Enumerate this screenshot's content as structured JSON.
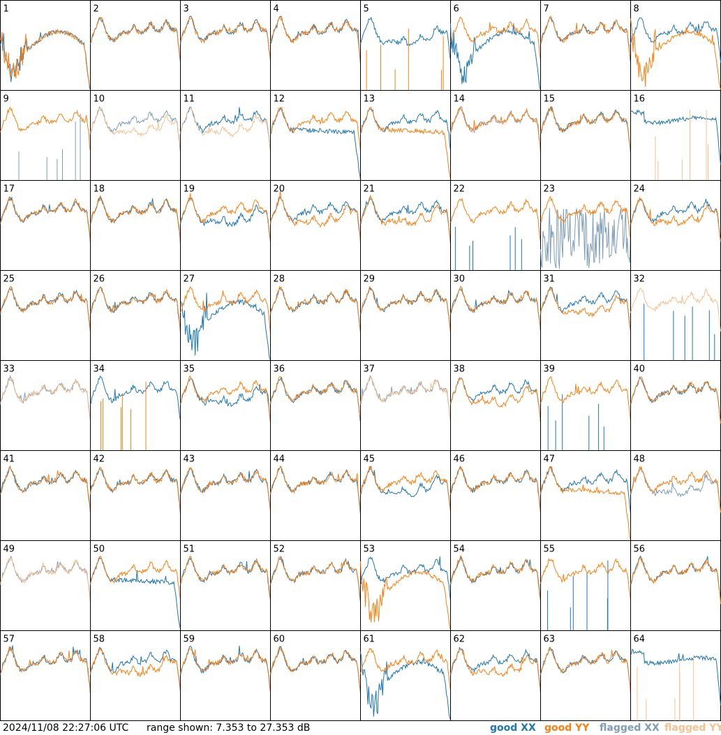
{
  "footer": {
    "timestamp": "2024/11/08 22:27:06 UTC",
    "range": "range shown: 7.353 to 27.353 dB",
    "legend": [
      {
        "label": "good XX",
        "color": "#1f77b4"
      },
      {
        "label": "good YY",
        "color": "#ff7f0e"
      },
      {
        "label": "flagged XX",
        "color": "#7f9db8"
      },
      {
        "label": "flagged YY",
        "color": "#f8c18f"
      }
    ]
  },
  "chart_data": {
    "type": "line",
    "grid": {
      "rows": 8,
      "cols": 8
    },
    "ylim": [
      7.353,
      27.353
    ],
    "yunit": "dB",
    "panels": [
      {
        "id": "1",
        "xx": "bump",
        "yy": "bump",
        "yy_flag": false,
        "xx_flag": false
      },
      {
        "id": "2",
        "xx": "normal",
        "yy": "normal"
      },
      {
        "id": "3",
        "xx": "normal",
        "yy": "normal"
      },
      {
        "id": "4",
        "xx": "normal",
        "yy": "normal"
      },
      {
        "id": "5",
        "xx": "low",
        "yy": "spikes_bottom"
      },
      {
        "id": "6",
        "xx": "bump",
        "yy": "normal"
      },
      {
        "id": "7",
        "xx": "normal",
        "yy": "normal"
      },
      {
        "id": "8",
        "xx": "normal",
        "yy": "bump"
      },
      {
        "id": "9",
        "xx": "spikes_bottom_flag",
        "yy": "normal"
      },
      {
        "id": "10",
        "xx": "normal_flag",
        "yy": "low_flag"
      },
      {
        "id": "11",
        "xx": "normal",
        "yy": "low_flag"
      },
      {
        "id": "12",
        "xx": "decay",
        "yy": "normal"
      },
      {
        "id": "13",
        "xx": "normal",
        "yy": "decay"
      },
      {
        "id": "14",
        "xx": "normal_flag",
        "yy": "normal"
      },
      {
        "id": "15",
        "xx": "normal",
        "yy": "normal"
      },
      {
        "id": "16",
        "xx": "flat",
        "yy": "spikes_bottom_flag"
      },
      {
        "id": "17",
        "xx": "normal",
        "yy": "normal"
      },
      {
        "id": "18",
        "xx": "normal",
        "yy": "normal"
      },
      {
        "id": "19",
        "xx": "low",
        "yy": "normal"
      },
      {
        "id": "20",
        "xx": "normal",
        "yy": "low"
      },
      {
        "id": "21",
        "xx": "normal",
        "yy": "low"
      },
      {
        "id": "22",
        "xx": "spikes_bottom",
        "yy": "normal"
      },
      {
        "id": "23",
        "xx": "noisy_flag",
        "yy": "normal"
      },
      {
        "id": "24",
        "xx": "normal",
        "yy": "low"
      },
      {
        "id": "25",
        "xx": "normal",
        "yy": "normal"
      },
      {
        "id": "26",
        "xx": "normal",
        "yy": "normal"
      },
      {
        "id": "27",
        "xx": "bump",
        "yy": "normal"
      },
      {
        "id": "28",
        "xx": "normal",
        "yy": "normal"
      },
      {
        "id": "29",
        "xx": "normal",
        "yy": "normal"
      },
      {
        "id": "30",
        "xx": "normal",
        "yy": "normal"
      },
      {
        "id": "31",
        "xx": "normal",
        "yy": "low"
      },
      {
        "id": "32",
        "xx": "spikes_bottom",
        "yy": "normal_flag"
      },
      {
        "id": "33",
        "xx": "normal_flag",
        "yy": "normal_flag"
      },
      {
        "id": "34",
        "xx": "normal",
        "yy": "spikes_bottom"
      },
      {
        "id": "35",
        "xx": "low",
        "yy": "normal"
      },
      {
        "id": "36",
        "xx": "normal",
        "yy": "normal"
      },
      {
        "id": "37",
        "xx": "normal_flag",
        "yy": "normal_flag"
      },
      {
        "id": "38",
        "xx": "normal",
        "yy": "low"
      },
      {
        "id": "39",
        "xx": "spikes_bottom",
        "yy": "normal"
      },
      {
        "id": "40",
        "xx": "normal",
        "yy": "normal"
      },
      {
        "id": "41",
        "xx": "normal",
        "yy": "normal"
      },
      {
        "id": "42",
        "xx": "normal",
        "yy": "normal"
      },
      {
        "id": "43",
        "xx": "normal",
        "yy": "normal"
      },
      {
        "id": "44",
        "xx": "normal",
        "yy": "normal"
      },
      {
        "id": "45",
        "xx": "low",
        "yy": "normal"
      },
      {
        "id": "46",
        "xx": "normal",
        "yy": "normal"
      },
      {
        "id": "47",
        "xx": "normal",
        "yy": "decay"
      },
      {
        "id": "48",
        "xx": "low_flag",
        "yy": "normal"
      },
      {
        "id": "49",
        "xx": "normal_flag",
        "yy": "normal_flag"
      },
      {
        "id": "50",
        "xx": "decay",
        "yy": "normal"
      },
      {
        "id": "51",
        "xx": "normal",
        "yy": "normal"
      },
      {
        "id": "52",
        "xx": "normal",
        "yy": "normal"
      },
      {
        "id": "53",
        "xx": "normal",
        "yy": "bump"
      },
      {
        "id": "54",
        "xx": "normal",
        "yy": "normal"
      },
      {
        "id": "55",
        "xx": "spikes_bottom",
        "yy": "normal"
      },
      {
        "id": "56",
        "xx": "normal",
        "yy": "normal"
      },
      {
        "id": "57",
        "xx": "normal",
        "yy": "normal"
      },
      {
        "id": "58",
        "xx": "normal",
        "yy": "low"
      },
      {
        "id": "59",
        "xx": "normal",
        "yy": "normal"
      },
      {
        "id": "60",
        "xx": "normal",
        "yy": "normal"
      },
      {
        "id": "61",
        "xx": "bump",
        "yy": "normal"
      },
      {
        "id": "62",
        "xx": "normal",
        "yy": "low"
      },
      {
        "id": "63",
        "xx": "normal",
        "yy": "normal"
      },
      {
        "id": "64",
        "xx": "flat",
        "yy": "spikes_bottom_flag"
      }
    ]
  }
}
